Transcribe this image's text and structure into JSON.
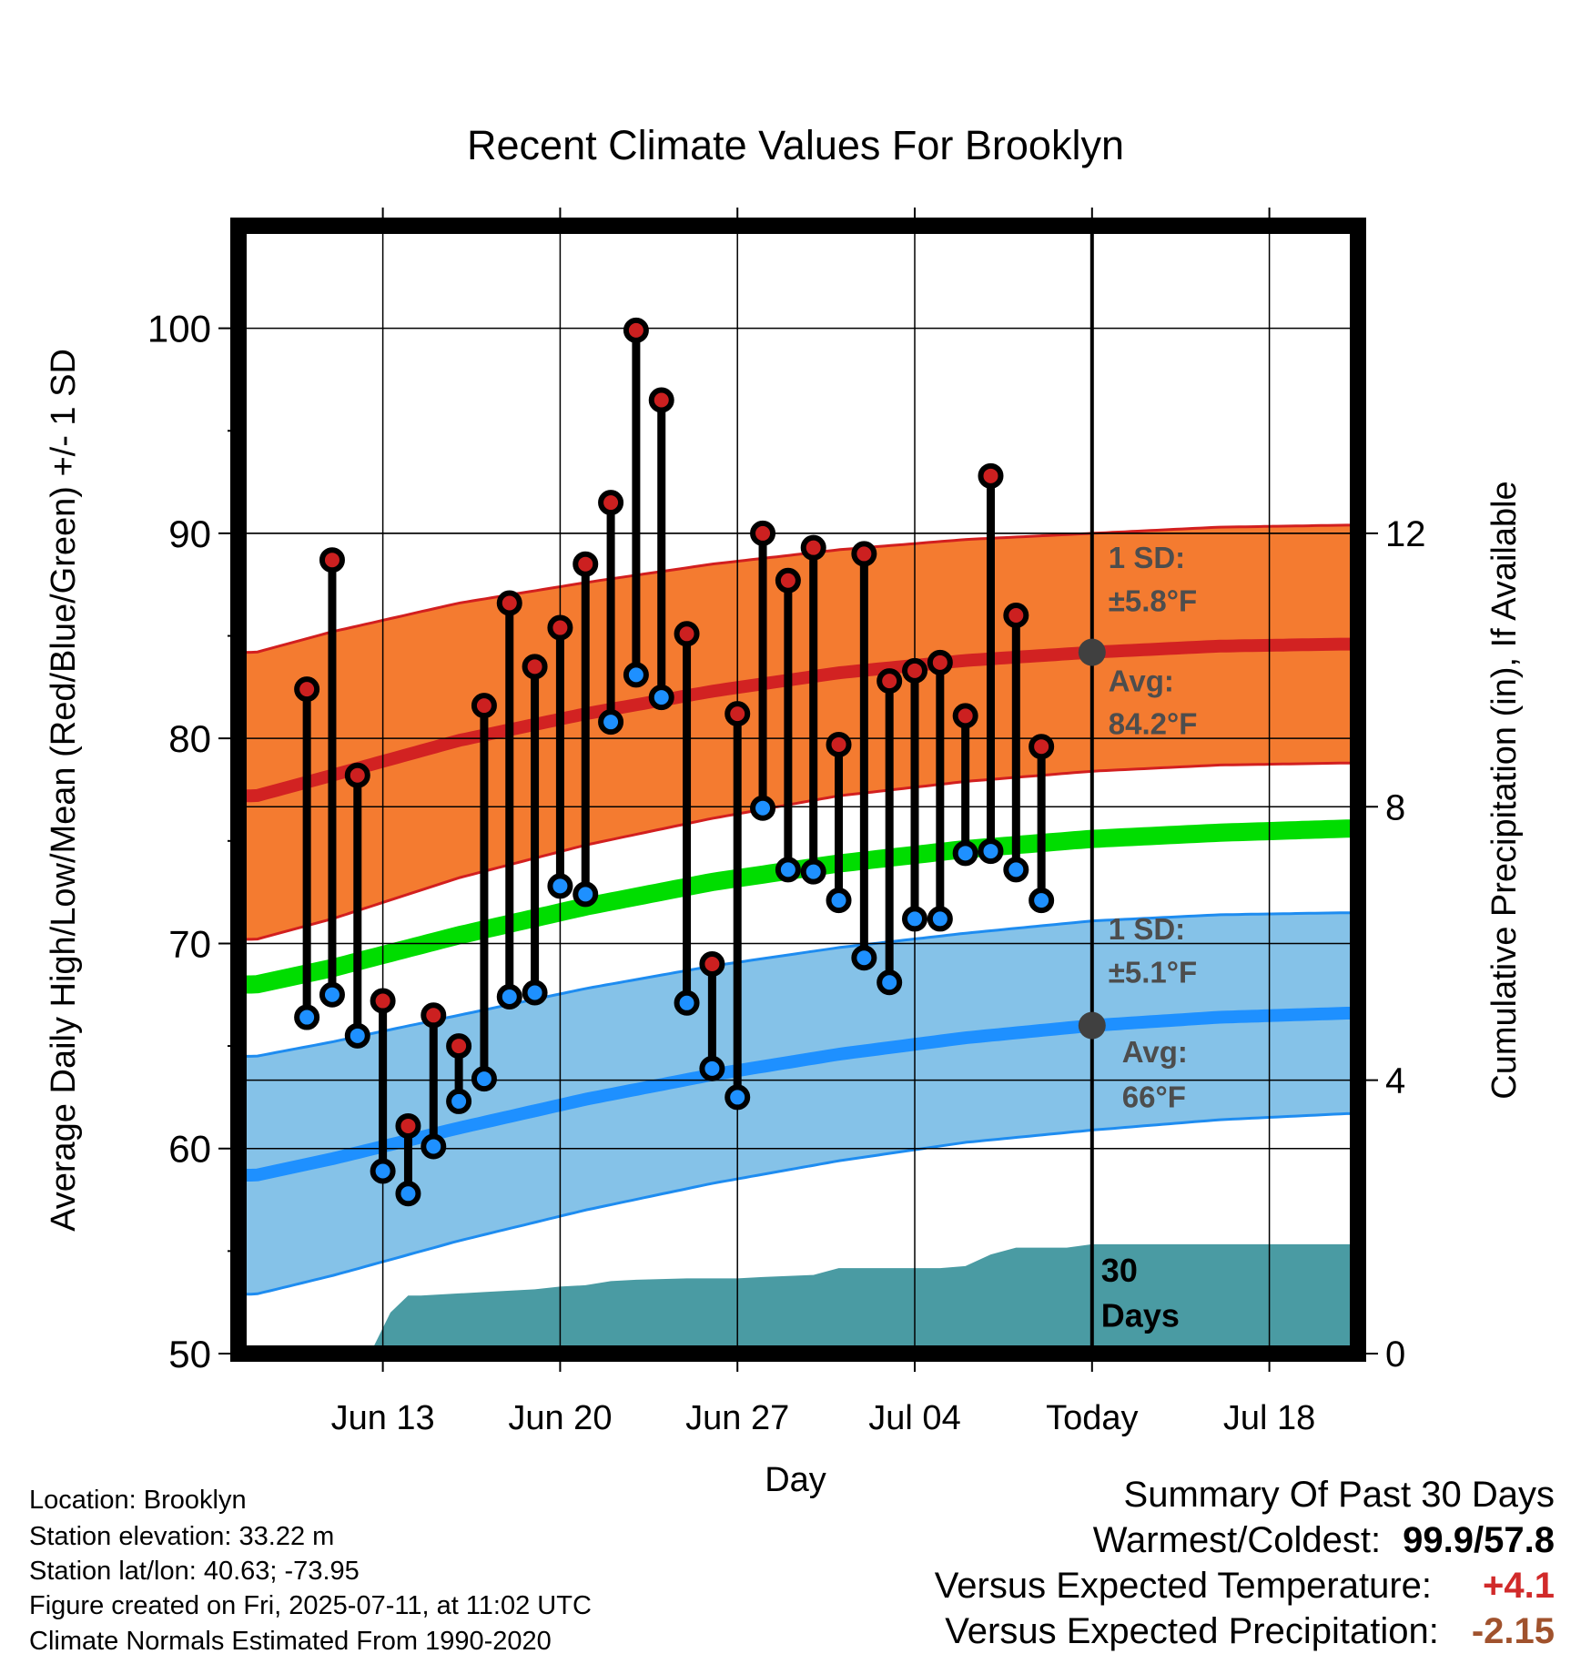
{
  "chart_data": {
    "type": "line",
    "title": "Recent Climate Values For Brooklyn",
    "xlabel": "Day",
    "ylabel": "Average Daily High/Low/Mean (Red/Blue/Green) +/- 1 SD",
    "y2label": "Cumulative Precipitation (in), If Available",
    "ylim": [
      50,
      105
    ],
    "y2lim": [
      0,
      16.5
    ],
    "xlim": [
      -3.7,
      40.5
    ],
    "x_ticks": [
      {
        "x": 2,
        "label": "Jun 13"
      },
      {
        "x": 9,
        "label": "Jun 20"
      },
      {
        "x": 16,
        "label": "Jun 27"
      },
      {
        "x": 23,
        "label": "Jul 04"
      },
      {
        "x": 30,
        "label": "Today"
      },
      {
        "x": 37,
        "label": "Jul 18"
      }
    ],
    "y_ticks": [
      50,
      60,
      70,
      80,
      90,
      100
    ],
    "y_minor_ticks": [
      55,
      65,
      75,
      85,
      95
    ],
    "y2_ticks": [
      0,
      4,
      8,
      12
    ],
    "today_x": 30,
    "grid": true,
    "period_label": [
      "30",
      "Days"
    ],
    "colors": {
      "high_band": "#F47B30",
      "high_edge": "#D21F1F",
      "high_mean": "#D22222",
      "low_band": "#85C2E8",
      "low_edge": "#1E8CF0",
      "low_mean": "#1E90FF",
      "mean_normal": "#00DD00",
      "precip": "#4A9BA3",
      "high_marker": "#CC2020",
      "low_marker": "#1E90FF",
      "today_marker": "#404040",
      "annotation": "#4D4D4D"
    },
    "normals": {
      "x": [
        -3,
        0,
        5,
        10,
        15,
        20,
        25,
        30,
        35,
        40
      ],
      "high_avg": [
        77.2,
        78.2,
        79.9,
        81.2,
        82.3,
        83.2,
        83.8,
        84.2,
        84.5,
        84.6
      ],
      "high_sd": [
        7.0,
        7.0,
        6.7,
        6.4,
        6.2,
        6.0,
        5.9,
        5.8,
        5.8,
        5.8
      ],
      "low_avg": [
        58.7,
        59.5,
        61.0,
        62.4,
        63.6,
        64.6,
        65.4,
        66.0,
        66.4,
        66.6
      ],
      "low_sd": [
        5.8,
        5.7,
        5.5,
        5.4,
        5.3,
        5.2,
        5.1,
        5.1,
        5.0,
        4.9
      ],
      "mean_normal": [
        68.0,
        68.8,
        70.4,
        71.8,
        73.0,
        73.9,
        74.6,
        75.1,
        75.4,
        75.6
      ]
    },
    "annotations": {
      "high_sd": [
        "1 SD:",
        "±5.8°F"
      ],
      "high_avg": [
        "Avg:",
        "84.2°F"
      ],
      "low_sd": [
        "1 SD:",
        "±5.1°F"
      ],
      "low_avg": [
        "Avg:",
        "66°F"
      ]
    },
    "today_normals": {
      "high": 84.2,
      "low": 66.0
    },
    "series": [
      {
        "name": "High",
        "x": [
          -1,
          0,
          1,
          2,
          3,
          4,
          5,
          6,
          7,
          8,
          9,
          10,
          11,
          12,
          13,
          14,
          15,
          16,
          17,
          18,
          19,
          20,
          21,
          22,
          23,
          24,
          25,
          26,
          27,
          28,
          29
        ],
        "values": [
          82.4,
          88.7,
          78.2,
          67.2,
          61.1,
          66.5,
          65.0,
          81.6,
          86.6,
          83.5,
          85.4,
          88.5,
          91.5,
          99.9,
          96.5,
          85.1,
          69.0,
          81.2,
          90.0,
          87.7,
          89.3,
          79.7,
          89.0,
          82.8,
          83.3,
          83.7,
          81.1,
          92.8,
          86.0,
          79.6,
          null
        ]
      },
      {
        "name": "Low",
        "x": [
          -1,
          0,
          1,
          2,
          3,
          4,
          5,
          6,
          7,
          8,
          9,
          10,
          11,
          12,
          13,
          14,
          15,
          16,
          17,
          18,
          19,
          20,
          21,
          22,
          23,
          24,
          25,
          26,
          27,
          28,
          29
        ],
        "values": [
          66.4,
          67.5,
          65.5,
          58.9,
          57.8,
          60.1,
          62.3,
          63.4,
          67.4,
          67.6,
          72.8,
          72.4,
          80.8,
          83.1,
          82.0,
          67.1,
          63.9,
          62.5,
          76.6,
          73.6,
          73.5,
          72.1,
          69.3,
          68.1,
          71.2,
          71.2,
          74.4,
          74.5,
          73.6,
          72.1,
          null
        ]
      }
    ],
    "precip": {
      "x": [
        -3.7,
        1.5,
        2.3,
        3.0,
        3.5,
        5.0,
        6.0,
        7.0,
        8.0,
        9.0,
        10.0,
        11.0,
        12.0,
        14.0,
        16.0,
        17.0,
        19.0,
        20.0,
        24.0,
        25.0,
        26.0,
        27.0,
        29.0,
        30.0,
        40.5
      ],
      "values": [
        0,
        0,
        0.6,
        0.85,
        0.85,
        0.88,
        0.9,
        0.92,
        0.94,
        0.98,
        1.0,
        1.06,
        1.08,
        1.1,
        1.1,
        1.12,
        1.15,
        1.25,
        1.25,
        1.28,
        1.45,
        1.55,
        1.55,
        1.6,
        1.6
      ]
    }
  },
  "station": {
    "location": "Location: Brooklyn",
    "elevation": "Station elevation: 33.22 m",
    "latlon": "Station lat/lon: 40.63; -73.95",
    "created": "Figure created on Fri, 2025-07-11, at 11:02 UTC",
    "normals": "Climate Normals Estimated From 1990-2020"
  },
  "summary": {
    "heading": "Summary Of Past 30 Days",
    "warm_cold_label": "Warmest/Coldest:",
    "warmest": "99.9",
    "coldest": "57.8",
    "temp_label": "Versus Expected Temperature:",
    "temp_value": "+4.1",
    "temp_color": "#D12A2A",
    "precip_label": "Versus Expected Precipitation:",
    "precip_value": "-2.15",
    "precip_color": "#A0522D"
  }
}
